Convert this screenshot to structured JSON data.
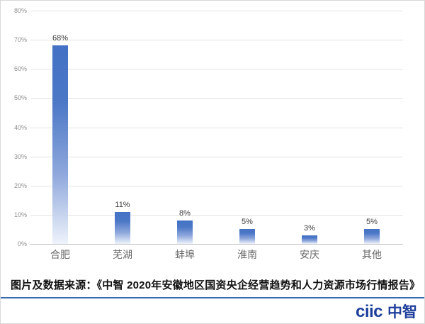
{
  "chart_data": {
    "type": "bar",
    "title": "",
    "xlabel": "",
    "ylabel": "",
    "categories": [
      "合肥",
      "芜湖",
      "蚌埠",
      "淮南",
      "安庆",
      "其他"
    ],
    "values": [
      68,
      11,
      8,
      5,
      3,
      5
    ],
    "value_labels": [
      "68%",
      "11%",
      "8%",
      "5%",
      "3%",
      "5%"
    ],
    "yticks": [
      80,
      70,
      60,
      50,
      40,
      30,
      20,
      10,
      0
    ],
    "ytick_labels": [
      "80%",
      "70%",
      "60%",
      "50%",
      "40%",
      "30%",
      "20%",
      "10%",
      "0%"
    ],
    "ylim": [
      0,
      80
    ],
    "grid": true,
    "legend": false,
    "bar_color_top": "#4472C4",
    "bar_color_bottom": "#EEF3FB"
  },
  "caption": {
    "text": "图片及数据来源：《中智 2020年安徽地区国资央企经营趋势和人力资源市场行情报告》"
  },
  "logo": {
    "latin": "ciic",
    "chinese": "中智",
    "color": "#1d3f9c"
  },
  "colors": {
    "gridline": "#e2e2e2",
    "axis_line": "#c2c2c2",
    "divider": "#3b69b1",
    "tick_label": "#8f8f8f",
    "category_label": "#6a6a6a",
    "value_label": "#3d3d3d"
  }
}
